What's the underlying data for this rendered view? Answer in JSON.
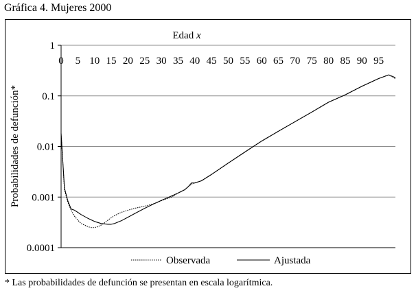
{
  "page": {
    "title": "Gráfica 4. Mujeres 2000",
    "footnote": "* Las probabilidades de defunción se presentan en escala logarítmica."
  },
  "chart_data": {
    "type": "line",
    "xlabel_prefix": "Edad ",
    "xlabel_var": "x",
    "ylabel": "Probabilidades de defunción*",
    "xlim": [
      0,
      100
    ],
    "ylim": [
      0.0001,
      1
    ],
    "y_scale": "log",
    "x_ticks": [
      0,
      5,
      10,
      15,
      20,
      25,
      30,
      35,
      40,
      45,
      50,
      55,
      60,
      65,
      70,
      75,
      80,
      85,
      90,
      95
    ],
    "y_ticks": [
      {
        "value": 1,
        "label": "1"
      },
      {
        "value": 0.1,
        "label": "0.1"
      },
      {
        "value": 0.01,
        "label": "0.01"
      },
      {
        "value": 0.001,
        "label": "0.001"
      },
      {
        "value": 0.0001,
        "label": "0.0001"
      }
    ],
    "grid": true,
    "x_axis_position": "top",
    "legend_position": "bottom",
    "series": [
      {
        "name": "Observada",
        "style": "dotted",
        "x": [
          0,
          1,
          2,
          3,
          4,
          5,
          6,
          7,
          8,
          9,
          10,
          11,
          12,
          13,
          14,
          15,
          16,
          18,
          20,
          22,
          25,
          28,
          30,
          33,
          35,
          37,
          38,
          39,
          40,
          42,
          45,
          50,
          55,
          60,
          65,
          70,
          75,
          80,
          85,
          90,
          95,
          98,
          100
        ],
        "y": [
          0.018,
          0.0014,
          0.0008,
          0.00055,
          0.00042,
          0.00035,
          0.0003,
          0.00028,
          0.00026,
          0.00025,
          0.00025,
          0.00026,
          0.00028,
          0.00031,
          0.00035,
          0.00039,
          0.00043,
          0.0005,
          0.00055,
          0.0006,
          0.00066,
          0.00075,
          0.00085,
          0.001,
          0.0012,
          0.0014,
          0.0016,
          0.0018,
          0.0019,
          0.0021,
          0.0028,
          0.0047,
          0.0078,
          0.0128,
          0.02,
          0.031,
          0.048,
          0.075,
          0.105,
          0.155,
          0.22,
          0.26,
          0.22
        ]
      },
      {
        "name": "Ajustada",
        "style": "solid",
        "x": [
          0,
          1,
          2,
          3,
          4,
          5,
          6,
          8,
          10,
          12,
          14,
          15,
          16,
          18,
          20,
          22,
          25,
          28,
          30,
          33,
          35,
          37,
          38,
          39,
          40,
          42,
          45,
          50,
          55,
          60,
          65,
          70,
          75,
          80,
          85,
          90,
          95,
          98,
          100
        ],
        "y": [
          0.018,
          0.0015,
          0.00085,
          0.00058,
          0.00055,
          0.0005,
          0.00045,
          0.00038,
          0.00033,
          0.0003,
          0.00029,
          0.00029,
          0.0003,
          0.00034,
          0.0004,
          0.00047,
          0.0006,
          0.00075,
          0.00086,
          0.00105,
          0.0012,
          0.0014,
          0.0016,
          0.0019,
          0.0019,
          0.0021,
          0.0028,
          0.0047,
          0.0078,
          0.0128,
          0.02,
          0.031,
          0.048,
          0.075,
          0.105,
          0.155,
          0.22,
          0.26,
          0.23
        ]
      }
    ]
  }
}
